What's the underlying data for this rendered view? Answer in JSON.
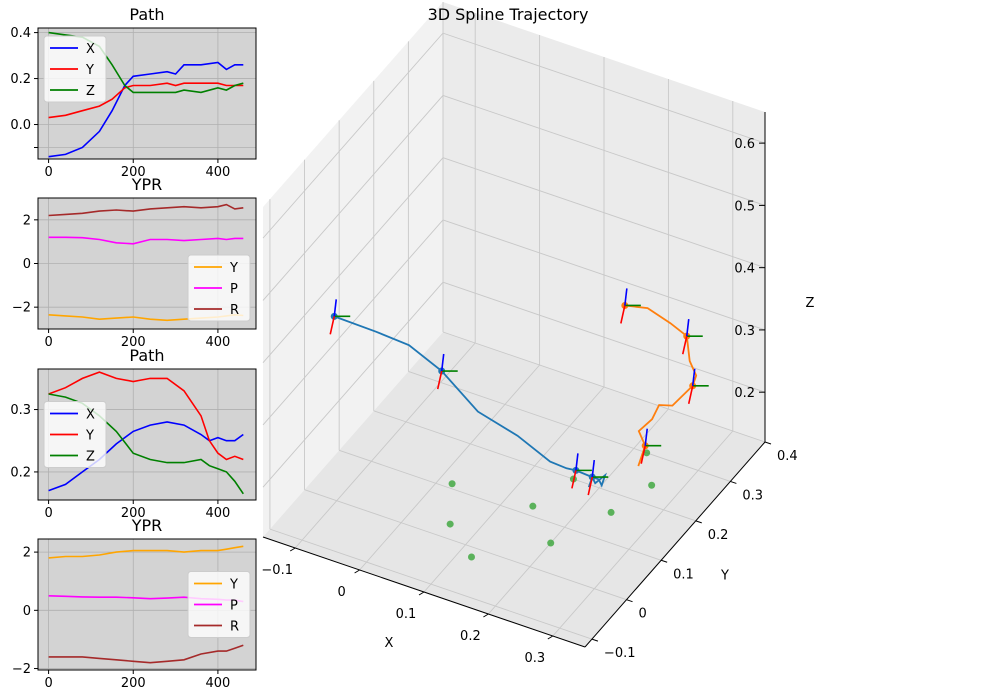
{
  "chart_data": [
    {
      "type": "line",
      "title": "Path",
      "x_ticks": [
        0,
        200,
        400
      ],
      "y_ticks": [
        -0.1,
        0.0,
        0.2,
        0.4
      ],
      "y_tick_labels": [
        "",
        "0.0",
        "0.2",
        "0.4"
      ],
      "xlim": [
        -25,
        490
      ],
      "ylim": [
        -0.15,
        0.42
      ],
      "background": "#d3d3d3",
      "grid": true,
      "legend_position": "upper-left",
      "x": [
        0,
        40,
        80,
        120,
        150,
        180,
        200,
        240,
        280,
        300,
        320,
        360,
        400,
        420,
        440,
        460
      ],
      "series": [
        {
          "name": "X",
          "color": "#0000ff",
          "values": [
            -0.14,
            -0.13,
            -0.1,
            -0.03,
            0.06,
            0.17,
            0.21,
            0.22,
            0.23,
            0.22,
            0.26,
            0.26,
            0.27,
            0.24,
            0.26,
            0.26
          ]
        },
        {
          "name": "Y",
          "color": "#ff0000",
          "values": [
            0.03,
            0.04,
            0.06,
            0.08,
            0.11,
            0.16,
            0.17,
            0.17,
            0.18,
            0.17,
            0.18,
            0.18,
            0.18,
            0.17,
            0.17,
            0.17
          ]
        },
        {
          "name": "Z",
          "color": "#008000",
          "values": [
            0.4,
            0.39,
            0.38,
            0.34,
            0.26,
            0.17,
            0.14,
            0.14,
            0.14,
            0.14,
            0.15,
            0.14,
            0.16,
            0.15,
            0.17,
            0.18
          ]
        }
      ]
    },
    {
      "type": "line",
      "title": "YPR",
      "x_ticks": [
        0,
        200,
        400
      ],
      "y_ticks": [
        -2,
        0,
        2
      ],
      "xlim": [
        -25,
        490
      ],
      "ylim": [
        -3,
        3
      ],
      "background": "#d3d3d3",
      "grid": true,
      "legend_position": "lower-right",
      "x": [
        0,
        40,
        80,
        120,
        160,
        200,
        240,
        280,
        320,
        360,
        400,
        420,
        440,
        460
      ],
      "series": [
        {
          "name": "Y",
          "color": "#ffa500",
          "values": [
            -2.35,
            -2.4,
            -2.45,
            -2.55,
            -2.5,
            -2.45,
            -2.55,
            -2.6,
            -2.55,
            -2.5,
            -2.45,
            -2.4,
            -2.35,
            -2.38
          ]
        },
        {
          "name": "P",
          "color": "#ff00ff",
          "values": [
            1.2,
            1.2,
            1.18,
            1.1,
            0.95,
            0.9,
            1.1,
            1.1,
            1.05,
            1.1,
            1.15,
            1.1,
            1.15,
            1.15
          ]
        },
        {
          "name": "R",
          "color": "#a52a2a",
          "values": [
            2.2,
            2.25,
            2.3,
            2.4,
            2.45,
            2.4,
            2.5,
            2.55,
            2.6,
            2.55,
            2.6,
            2.7,
            2.5,
            2.55
          ]
        }
      ]
    },
    {
      "type": "line",
      "title": "Path",
      "x_ticks": [
        0,
        200,
        400
      ],
      "y_ticks": [
        0.2,
        0.3
      ],
      "xlim": [
        -25,
        490
      ],
      "ylim": [
        0.155,
        0.365
      ],
      "background": "#d3d3d3",
      "grid": true,
      "legend_position": "left",
      "x": [
        0,
        40,
        80,
        120,
        160,
        200,
        240,
        280,
        320,
        360,
        380,
        400,
        420,
        440,
        460
      ],
      "series": [
        {
          "name": "X",
          "color": "#0000ff",
          "values": [
            0.17,
            0.18,
            0.2,
            0.22,
            0.245,
            0.265,
            0.275,
            0.28,
            0.275,
            0.26,
            0.25,
            0.255,
            0.25,
            0.25,
            0.26
          ]
        },
        {
          "name": "Y",
          "color": "#ff0000",
          "values": [
            0.325,
            0.335,
            0.35,
            0.36,
            0.35,
            0.345,
            0.35,
            0.35,
            0.33,
            0.29,
            0.25,
            0.23,
            0.22,
            0.225,
            0.22
          ]
        },
        {
          "name": "Z",
          "color": "#008000",
          "values": [
            0.325,
            0.32,
            0.31,
            0.29,
            0.265,
            0.23,
            0.22,
            0.215,
            0.215,
            0.22,
            0.21,
            0.205,
            0.2,
            0.185,
            0.165
          ]
        }
      ]
    },
    {
      "type": "line",
      "title": "YPR",
      "x_ticks": [
        0,
        200,
        400
      ],
      "y_ticks": [
        -2,
        0,
        2
      ],
      "xlim": [
        -25,
        490
      ],
      "ylim": [
        -2.05,
        2.45
      ],
      "background": "#d3d3d3",
      "grid": true,
      "legend_position": "right",
      "x": [
        0,
        40,
        80,
        120,
        160,
        200,
        240,
        280,
        320,
        360,
        400,
        420,
        440,
        460
      ],
      "series": [
        {
          "name": "Y",
          "color": "#ffa500",
          "values": [
            1.8,
            1.85,
            1.85,
            1.9,
            2.0,
            2.05,
            2.05,
            2.05,
            2.0,
            2.05,
            2.05,
            2.1,
            2.15,
            2.2
          ]
        },
        {
          "name": "P",
          "color": "#ff00ff",
          "values": [
            0.5,
            0.48,
            0.46,
            0.45,
            0.45,
            0.43,
            0.4,
            0.42,
            0.45,
            0.4,
            0.38,
            0.35,
            0.35,
            0.3
          ]
        },
        {
          "name": "R",
          "color": "#a52a2a",
          "values": [
            -1.6,
            -1.6,
            -1.6,
            -1.65,
            -1.7,
            -1.75,
            -1.8,
            -1.75,
            -1.7,
            -1.5,
            -1.4,
            -1.4,
            -1.3,
            -1.2
          ]
        }
      ]
    },
    {
      "type": "line3d",
      "title": "3D Spline Trajectory",
      "xlabel": "X",
      "ylabel": "Y",
      "zlabel": "Z",
      "xlim": [
        -0.15,
        0.35
      ],
      "ylim": [
        -0.12,
        0.4
      ],
      "zlim": [
        0.12,
        0.65
      ],
      "x_ticks": [
        -0.1,
        0.0,
        0.1,
        0.2,
        0.3
      ],
      "y_ticks": [
        -0.1,
        0.0,
        0.1,
        0.2,
        0.3,
        0.4
      ],
      "z_ticks": [
        0.2,
        0.3,
        0.4,
        0.5,
        0.6
      ],
      "series": [
        {
          "name": "",
          "color": "#1f77b4",
          "points": [
            [
              -0.12,
              0.03,
              0.39
            ],
            [
              -0.06,
              0.04,
              0.38
            ],
            [
              -0.02,
              0.06,
              0.36
            ],
            [
              0.02,
              0.08,
              0.32
            ],
            [
              0.06,
              0.11,
              0.25
            ],
            [
              0.1,
              0.15,
              0.2
            ],
            [
              0.14,
              0.17,
              0.16
            ],
            [
              0.16,
              0.18,
              0.15
            ],
            [
              0.18,
              0.17,
              0.16
            ],
            [
              0.2,
              0.18,
              0.15
            ],
            [
              0.21,
              0.18,
              0.15
            ],
            [
              0.22,
              0.17,
              0.15
            ],
            [
              0.22,
              0.18,
              0.16
            ],
            [
              0.21,
              0.17,
              0.15
            ],
            [
              0.2,
              0.18,
              0.15
            ],
            [
              0.2,
              0.17,
              0.14
            ]
          ]
        },
        {
          "name": "",
          "color": "#ff7f0e",
          "points": [
            [
              0.17,
              0.33,
              0.32
            ],
            [
              0.2,
              0.34,
              0.32
            ],
            [
              0.23,
              0.35,
              0.3
            ],
            [
              0.25,
              0.36,
              0.28
            ],
            [
              0.26,
              0.35,
              0.25
            ],
            [
              0.27,
              0.35,
              0.23
            ],
            [
              0.27,
              0.34,
              0.22
            ],
            [
              0.26,
              0.3,
              0.21
            ],
            [
              0.25,
              0.28,
              0.22
            ],
            [
              0.25,
              0.26,
              0.21
            ],
            [
              0.24,
              0.24,
              0.2
            ],
            [
              0.25,
              0.24,
              0.18
            ],
            [
              0.25,
              0.22,
              0.16
            ]
          ]
        }
      ],
      "projected_points": [
        [
          0.02,
          0.11
        ],
        [
          0.06,
          0.03
        ],
        [
          0.12,
          -0.02
        ],
        [
          0.14,
          0.12
        ],
        [
          0.2,
          0.06
        ],
        [
          0.24,
          0.16
        ],
        [
          0.26,
          0.24
        ],
        [
          0.22,
          0.3
        ],
        [
          0.16,
          0.2
        ]
      ],
      "projected_color": "#2ca02c"
    }
  ]
}
